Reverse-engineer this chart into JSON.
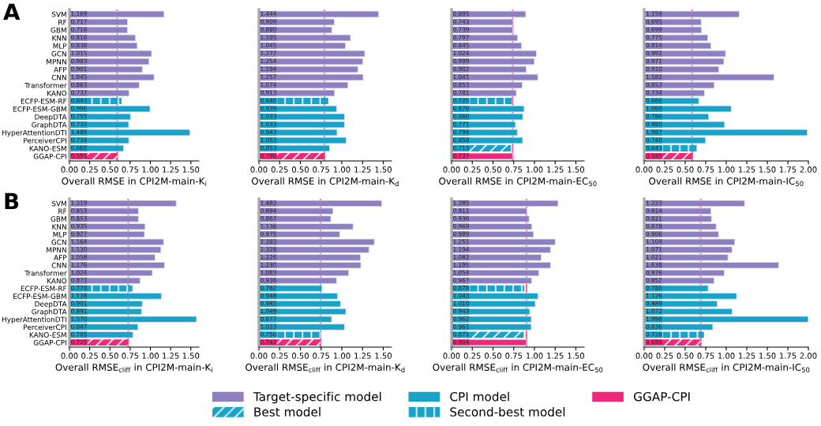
{
  "chart_data": [
    {
      "type": "bar",
      "orientation": "horizontal",
      "annotations": [
        "A"
      ],
      "xlabel": "Overall RMSE in CPI2M-main-K$_{i}$",
      "categories": [
        "SVM",
        "RF",
        "GBM",
        "KNN",
        "MLP",
        "GCN",
        "MPNN",
        "AFP",
        "CNN",
        "Transformer",
        "KANO",
        "ECFP-ESM-RF",
        "ECFP-ESM-GBM",
        "DeepDTA",
        "GraphDTA",
        "HyperAttentionDTI",
        "PerceiverCPI",
        "KANO-ESM",
        "GGAP-CPI"
      ],
      "xlim": [
        0,
        1.6
      ],
      "xticks": [
        {
          "value": 0,
          "label": "0.00"
        },
        {
          "value": 0.25,
          "label": "0.25"
        },
        {
          "value": 0.5,
          "label": "0.50"
        },
        {
          "value": 0.75,
          "label": "0.75"
        },
        {
          "value": 1,
          "label": "1.00"
        },
        {
          "value": 1.25,
          "label": "1.25"
        },
        {
          "value": 1.5,
          "label": "1.50"
        }
      ],
      "ref_lines": [
        {
          "axis": "x",
          "value": 0.591,
          "color": "#f06fa8"
        }
      ],
      "series": [
        {
          "color": "#8e7fc0",
          "values": [
            1.169,
            0.717,
            0.716,
            0.816,
            0.838,
            1.015,
            0.983,
            0.901,
            1.045,
            0.863,
            0.737,
            null,
            null,
            null,
            null,
            null,
            null,
            null,
            null
          ],
          "value_labels": [
            "1.169",
            "0.717",
            "0.716",
            "0.816",
            "0.838",
            "1.015",
            "0.983",
            "0.901",
            "1.045",
            "0.863",
            "0.737",
            null,
            null,
            null,
            null,
            null,
            null,
            null,
            null
          ]
        },
        {
          "color": "#1aa3c8",
          "values": [
            null,
            null,
            null,
            null,
            null,
            null,
            null,
            null,
            null,
            null,
            null,
            null,
            0.996,
            0.755,
            0.732,
            1.489,
            0.734,
            0.668,
            null
          ],
          "value_labels": [
            null,
            null,
            null,
            null,
            null,
            null,
            null,
            null,
            null,
            null,
            null,
            null,
            "0.996",
            "0.755",
            "0.732",
            "1.489",
            "0.734",
            "0.668",
            null
          ]
        },
        {
          "color": "#f0287c",
          "line_style": "dashed",
          "values": [
            null,
            null,
            null,
            null,
            null,
            null,
            null,
            null,
            null,
            null,
            null,
            null,
            null,
            null,
            null,
            null,
            null,
            null,
            0.591
          ],
          "value_labels": [
            null,
            null,
            null,
            null,
            null,
            null,
            null,
            null,
            null,
            null,
            null,
            null,
            null,
            null,
            null,
            null,
            null,
            null,
            "0.591"
          ]
        },
        {
          "color": "#1aa3c8",
          "line_style": "dotted",
          "values": [
            null,
            null,
            null,
            null,
            null,
            null,
            null,
            null,
            null,
            null,
            null,
            0.643,
            null,
            null,
            null,
            null,
            null,
            null,
            null
          ],
          "value_labels": [
            null,
            null,
            null,
            null,
            null,
            null,
            null,
            null,
            null,
            null,
            null,
            "0.643",
            null,
            null,
            null,
            null,
            null,
            null,
            null
          ]
        }
      ]
    },
    {
      "type": "bar",
      "orientation": "horizontal",
      "tick_labels": "x",
      "xlabel": "Overall RMSE in CPI2M-main-K$_{d}$",
      "categories": [
        null,
        null,
        null,
        null,
        null,
        null,
        null,
        null,
        null,
        null,
        null,
        null,
        null,
        null,
        null,
        null,
        null,
        null,
        null
      ],
      "xlim": [
        0,
        1.6
      ],
      "xticks": [
        {
          "value": 0,
          "label": "0.00"
        },
        {
          "value": 0.25,
          "label": "0.25"
        },
        {
          "value": 0.5,
          "label": "0.50"
        },
        {
          "value": 0.75,
          "label": "0.75"
        },
        {
          "value": 1,
          "label": "1.00"
        },
        {
          "value": 1.25,
          "label": "1.25"
        },
        {
          "value": 1.5,
          "label": "1.50"
        }
      ],
      "ref_lines": [
        {
          "axis": "x",
          "value": 0.79,
          "color": "#f06fa8"
        }
      ],
      "series": [
        {
          "color": "#8e7fc0",
          "values": [
            1.444,
            0.909,
            0.88,
            1.105,
            1.045,
            1.277,
            1.254,
            1.194,
            1.257,
            1.074,
            0.913,
            null,
            null,
            null,
            null,
            null,
            null,
            null,
            null
          ],
          "value_labels": [
            "1.444",
            "0.909",
            "0.880",
            "1.105",
            "1.045",
            "1.277",
            "1.254",
            "1.194",
            "1.257",
            "1.074",
            "0.913",
            null,
            null,
            null,
            null,
            null,
            null,
            null,
            null
          ]
        },
        {
          "color": "#1aa3c8",
          "values": [
            null,
            null,
            null,
            null,
            null,
            null,
            null,
            null,
            null,
            null,
            null,
            null,
            0.939,
            1.033,
            1.033,
            0.943,
            1.053,
            0.853,
            null
          ],
          "value_labels": [
            null,
            null,
            null,
            null,
            null,
            null,
            null,
            null,
            null,
            null,
            null,
            null,
            "0.939",
            "1.033",
            "1.033",
            "0.943",
            "1.053",
            "0.853",
            null
          ]
        },
        {
          "color": "#f0287c",
          "line_style": "dashed",
          "values": [
            null,
            null,
            null,
            null,
            null,
            null,
            null,
            null,
            null,
            null,
            null,
            null,
            null,
            null,
            null,
            null,
            null,
            null,
            0.79
          ],
          "value_labels": [
            null,
            null,
            null,
            null,
            null,
            null,
            null,
            null,
            null,
            null,
            null,
            null,
            null,
            null,
            null,
            null,
            null,
            null,
            "0.790"
          ]
        },
        {
          "color": "#1aa3c8",
          "line_style": "dotted",
          "values": [
            null,
            null,
            null,
            null,
            null,
            null,
            null,
            null,
            null,
            null,
            null,
            0.84,
            null,
            null,
            null,
            null,
            null,
            null,
            null
          ],
          "value_labels": [
            null,
            null,
            null,
            null,
            null,
            null,
            null,
            null,
            null,
            null,
            null,
            "0.840",
            null,
            null,
            null,
            null,
            null,
            null,
            null
          ]
        }
      ]
    },
    {
      "type": "bar",
      "orientation": "horizontal",
      "tick_labels": "x",
      "legend": "bottom",
      "xlabel": "Overall RMSE in CPI2M-main-EC$_{50}$",
      "categories": [
        null,
        null,
        null,
        null,
        null,
        null,
        null,
        null,
        null,
        null,
        null,
        null,
        null,
        null,
        null,
        null,
        null,
        null,
        null
      ],
      "xlim": [
        0,
        1.6
      ],
      "xticks": [
        {
          "value": 0,
          "label": "0.00"
        },
        {
          "value": 0.25,
          "label": "0.25"
        },
        {
          "value": 0.5,
          "label": "0.50"
        },
        {
          "value": 0.75,
          "label": "0.75"
        },
        {
          "value": 1,
          "label": "1.00"
        },
        {
          "value": 1.25,
          "label": "1.25"
        },
        {
          "value": 1.5,
          "label": "1.50"
        }
      ],
      "ref_lines": [
        {
          "axis": "x",
          "value": 0.737,
          "color": "#f06fa8"
        }
      ],
      "series": [
        {
          "name": "Target-specific model",
          "color": "#8e7fc0",
          "values": [
            0.895,
            0.743,
            0.739,
            0.797,
            0.845,
            1.024,
            0.999,
            0.902,
            1.041,
            0.853,
            0.781,
            null,
            null,
            null,
            null,
            null,
            null,
            null,
            null
          ],
          "value_labels": [
            "0.895",
            "0.743",
            "0.739",
            "0.797",
            "0.845",
            "1.024",
            "0.999",
            "0.902",
            "1.041",
            "0.853",
            "0.781",
            null,
            null,
            null,
            null,
            null,
            null,
            null,
            null
          ]
        },
        {
          "name": "CPI model",
          "color": "#1aa3c8",
          "values": [
            null,
            null,
            null,
            null,
            null,
            null,
            null,
            null,
            null,
            null,
            null,
            null,
            0.876,
            0.86,
            0.771,
            0.794,
            0.858,
            null,
            null
          ],
          "value_labels": [
            null,
            null,
            null,
            null,
            null,
            null,
            null,
            null,
            null,
            null,
            null,
            null,
            "0.876",
            "0.860",
            "0.771",
            "0.794",
            "0.858",
            null,
            null
          ]
        },
        {
          "name": "GGAP-CPI",
          "color": "#f0287c",
          "values": [
            null,
            null,
            null,
            null,
            null,
            null,
            null,
            null,
            null,
            null,
            null,
            null,
            null,
            null,
            null,
            null,
            null,
            null,
            0.737
          ],
          "value_labels": [
            null,
            null,
            null,
            null,
            null,
            null,
            null,
            null,
            null,
            null,
            null,
            null,
            null,
            null,
            null,
            null,
            null,
            null,
            "0.737"
          ]
        },
        {
          "name": "Best model",
          "color": "#1aa3c8",
          "line_style": "dashed",
          "values": [
            null,
            null,
            null,
            null,
            null,
            null,
            null,
            null,
            null,
            null,
            null,
            null,
            null,
            null,
            null,
            null,
            null,
            0.715,
            null
          ],
          "value_labels": [
            null,
            null,
            null,
            null,
            null,
            null,
            null,
            null,
            null,
            null,
            null,
            null,
            null,
            null,
            null,
            null,
            null,
            "0.715",
            null
          ]
        },
        {
          "name": "Second-best model",
          "color": "#1aa3c8",
          "line_style": "dotted",
          "values": [
            null,
            null,
            null,
            null,
            null,
            null,
            null,
            null,
            null,
            null,
            null,
            0.725,
            null,
            null,
            null,
            null,
            null,
            null,
            null
          ],
          "value_labels": [
            null,
            null,
            null,
            null,
            null,
            null,
            null,
            null,
            null,
            null,
            null,
            "0.725",
            null,
            null,
            null,
            null,
            null,
            null,
            null
          ]
        }
      ]
    },
    {
      "type": "bar",
      "orientation": "horizontal",
      "tick_labels": "x",
      "xlabel": "Overall RMSE in CPI2M-main-IC$_{50}$",
      "categories": [
        null,
        null,
        null,
        null,
        null,
        null,
        null,
        null,
        null,
        null,
        null,
        null,
        null,
        null,
        null,
        null,
        null,
        null,
        null
      ],
      "xlim": [
        0,
        2.0
      ],
      "xticks": [
        {
          "value": 0,
          "label": "0.00"
        },
        {
          "value": 0.25,
          "label": "0.25"
        },
        {
          "value": 0.5,
          "label": "0.50"
        },
        {
          "value": 0.75,
          "label": "0.75"
        },
        {
          "value": 1,
          "label": "1.00"
        },
        {
          "value": 1.25,
          "label": "1.25"
        },
        {
          "value": 1.5,
          "label": "1.50"
        },
        {
          "value": 1.75,
          "label": "1.75"
        },
        {
          "value": 2,
          "label": "2.00"
        }
      ],
      "ref_lines": [
        {
          "axis": "x",
          "value": 0.585,
          "color": "#f06fa8"
        }
      ],
      "series": [
        {
          "color": "#8e7fc0",
          "values": [
            1.159,
            0.695,
            0.699,
            0.775,
            0.814,
            0.992,
            0.971,
            0.91,
            1.582,
            0.853,
            0.734,
            null,
            null,
            null,
            null,
            null,
            null,
            null,
            null
          ],
          "value_labels": [
            "1.159",
            "0.695",
            "0.699",
            "0.775",
            "0.814",
            "0.992",
            "0.971",
            "0.910",
            "1.582",
            "0.853",
            "0.734",
            null,
            null,
            null,
            null,
            null,
            null,
            null,
            null
          ]
        },
        {
          "color": "#1aa3c8",
          "values": [
            null,
            null,
            null,
            null,
            null,
            null,
            null,
            null,
            null,
            null,
            null,
            0.666,
            1.06,
            0.786,
            0.98,
            1.987,
            0.748,
            null,
            null
          ],
          "value_labels": [
            null,
            null,
            null,
            null,
            null,
            null,
            null,
            null,
            null,
            null,
            null,
            "0.666",
            "1.060",
            "0.786",
            "0.980",
            "1.987",
            "0.748",
            null,
            null
          ]
        },
        {
          "color": "#f0287c",
          "line_style": "dashed",
          "values": [
            null,
            null,
            null,
            null,
            null,
            null,
            null,
            null,
            null,
            null,
            null,
            null,
            null,
            null,
            null,
            null,
            null,
            null,
            0.585
          ],
          "value_labels": [
            null,
            null,
            null,
            null,
            null,
            null,
            null,
            null,
            null,
            null,
            null,
            null,
            null,
            null,
            null,
            null,
            null,
            null,
            "0.585"
          ]
        },
        {
          "color": "#1aa3c8",
          "line_style": "dotted",
          "values": [
            null,
            null,
            null,
            null,
            null,
            null,
            null,
            null,
            null,
            null,
            null,
            null,
            null,
            null,
            null,
            null,
            null,
            0.643,
            null
          ],
          "value_labels": [
            null,
            null,
            null,
            null,
            null,
            null,
            null,
            null,
            null,
            null,
            null,
            null,
            null,
            null,
            null,
            null,
            null,
            "0.643",
            null
          ]
        }
      ]
    },
    {
      "type": "bar",
      "orientation": "horizontal",
      "annotations": [
        "B"
      ],
      "xlabel": "Overall RMSE$_{cliff}$ in CPI2M-main-K$_{i}$",
      "categories": [
        "SVM",
        "RF",
        "GBM",
        "KNN",
        "MLP",
        "GCN",
        "MPNN",
        "AFP",
        "CNN",
        "Transformer",
        "KANO",
        "ECFP-ESM-RF",
        "ECFP-ESM-GBM",
        "DeepDTA",
        "GraphDTA",
        "HyperAttentionDTI",
        "PerceiverCPI",
        "KANO-ESM",
        "GGAP-CPI"
      ],
      "xlim": [
        0,
        1.6
      ],
      "xticks": [
        {
          "value": 0,
          "label": "0.00"
        },
        {
          "value": 0.25,
          "label": "0.25"
        },
        {
          "value": 0.5,
          "label": "0.50"
        },
        {
          "value": 0.75,
          "label": "0.75"
        },
        {
          "value": 1,
          "label": "1.00"
        },
        {
          "value": 1.25,
          "label": "1.25"
        },
        {
          "value": 1.5,
          "label": "1.50"
        }
      ],
      "ref_lines": [
        {
          "axis": "x",
          "value": 0.725,
          "color": "#f06fa8"
        }
      ],
      "series": [
        {
          "color": "#8e7fc0",
          "values": [
            1.319,
            0.853,
            0.853,
            0.935,
            0.927,
            1.164,
            1.13,
            1.058,
            1.176,
            1.024,
            0.873,
            null,
            null,
            null,
            null,
            null,
            null,
            null,
            null
          ],
          "value_labels": [
            "1.319",
            "0.853",
            "0.853",
            "0.935",
            "0.927",
            "1.164",
            "1.130",
            "1.058",
            "1.176",
            "1.024",
            "0.873",
            null,
            null,
            null,
            null,
            null,
            null,
            null,
            null
          ]
        },
        {
          "color": "#1aa3c8",
          "values": [
            null,
            null,
            null,
            null,
            null,
            null,
            null,
            null,
            null,
            null,
            null,
            null,
            1.138,
            0.901,
            0.891,
            1.57,
            0.847,
            0.785,
            null
          ],
          "value_labels": [
            null,
            null,
            null,
            null,
            null,
            null,
            null,
            null,
            null,
            null,
            null,
            null,
            "1.138",
            "0.901",
            "0.891",
            "1.570",
            "0.847",
            "0.785",
            null
          ]
        },
        {
          "color": "#f0287c",
          "line_style": "dashed",
          "values": [
            null,
            null,
            null,
            null,
            null,
            null,
            null,
            null,
            null,
            null,
            null,
            null,
            null,
            null,
            null,
            null,
            null,
            null,
            0.725
          ],
          "value_labels": [
            null,
            null,
            null,
            null,
            null,
            null,
            null,
            null,
            null,
            null,
            null,
            null,
            null,
            null,
            null,
            null,
            null,
            null,
            "0.725"
          ]
        },
        {
          "color": "#1aa3c8",
          "line_style": "dotted",
          "values": [
            null,
            null,
            null,
            null,
            null,
            null,
            null,
            null,
            null,
            null,
            null,
            0.778,
            null,
            null,
            null,
            null,
            null,
            null,
            null
          ],
          "value_labels": [
            null,
            null,
            null,
            null,
            null,
            null,
            null,
            null,
            null,
            null,
            null,
            "0.778",
            null,
            null,
            null,
            null,
            null,
            null,
            null
          ]
        }
      ]
    },
    {
      "type": "bar",
      "orientation": "horizontal",
      "tick_labels": "x",
      "xlabel": "Overall RMSE$_{cliff}$ in CPI2M-main-K$_{d}$",
      "categories": [
        null,
        null,
        null,
        null,
        null,
        null,
        null,
        null,
        null,
        null,
        null,
        null,
        null,
        null,
        null,
        null,
        null,
        null,
        null
      ],
      "xlim": [
        0,
        1.6
      ],
      "xticks": [
        {
          "value": 0,
          "label": "0.00"
        },
        {
          "value": 0.25,
          "label": "0.25"
        },
        {
          "value": 0.5,
          "label": "0.50"
        },
        {
          "value": 0.75,
          "label": "0.75"
        },
        {
          "value": 1,
          "label": "1.00"
        },
        {
          "value": 1.25,
          "label": "1.25"
        },
        {
          "value": 1.5,
          "label": "1.50"
        }
      ],
      "ref_lines": [
        {
          "axis": "x",
          "value": 0.743,
          "color": "#f06fa8"
        }
      ],
      "series": [
        {
          "color": "#8e7fc0",
          "values": [
            1.483,
            0.894,
            0.867,
            1.136,
            0.975,
            1.393,
            1.328,
            1.226,
            1.23,
            1.083,
            0.936,
            null,
            null,
            null,
            null,
            null,
            null,
            null,
            null
          ],
          "value_labels": [
            "1.483",
            "0.894",
            "0.867",
            "1.136",
            "0.975",
            "1.393",
            "1.328",
            "1.226",
            "1.230",
            "1.083",
            "0.936",
            null,
            null,
            null,
            null,
            null,
            null,
            null,
            null
          ]
        },
        {
          "color": "#1aa3c8",
          "values": [
            null,
            null,
            null,
            null,
            null,
            null,
            null,
            null,
            null,
            null,
            null,
            0.762,
            0.948,
            0.985,
            1.049,
            0.877,
            1.033,
            null,
            null
          ],
          "value_labels": [
            null,
            null,
            null,
            null,
            null,
            null,
            null,
            null,
            null,
            null,
            null,
            "0.762",
            "0.948",
            "0.985",
            "1.049",
            "0.877",
            "1.033",
            null,
            null
          ]
        },
        {
          "color": "#f0287c",
          "line_style": "dashed",
          "values": [
            null,
            null,
            null,
            null,
            null,
            null,
            null,
            null,
            null,
            null,
            null,
            null,
            null,
            null,
            null,
            null,
            null,
            null,
            0.743
          ],
          "value_labels": [
            null,
            null,
            null,
            null,
            null,
            null,
            null,
            null,
            null,
            null,
            null,
            null,
            null,
            null,
            null,
            null,
            null,
            null,
            "0.743"
          ]
        },
        {
          "color": "#1aa3c8",
          "line_style": "dotted",
          "values": [
            null,
            null,
            null,
            null,
            null,
            null,
            null,
            null,
            null,
            null,
            null,
            null,
            null,
            null,
            null,
            null,
            null,
            0.75,
            null
          ],
          "value_labels": [
            null,
            null,
            null,
            null,
            null,
            null,
            null,
            null,
            null,
            null,
            null,
            null,
            null,
            null,
            null,
            null,
            null,
            "0.750",
            null
          ]
        }
      ]
    },
    {
      "type": "bar",
      "orientation": "horizontal",
      "tick_labels": "x",
      "xlabel": "Overall RMSE$_{cliff}$ in CPI2M-main-EC$_{50}$",
      "categories": [
        null,
        null,
        null,
        null,
        null,
        null,
        null,
        null,
        null,
        null,
        null,
        null,
        null,
        null,
        null,
        null,
        null,
        null,
        null
      ],
      "xlim": [
        0,
        1.6
      ],
      "xticks": [
        {
          "value": 0,
          "label": "0.00"
        },
        {
          "value": 0.25,
          "label": "0.25"
        },
        {
          "value": 0.5,
          "label": "0.50"
        },
        {
          "value": 0.75,
          "label": "0.75"
        },
        {
          "value": 1,
          "label": "1.00"
        },
        {
          "value": 1.25,
          "label": "1.25"
        },
        {
          "value": 1.5,
          "label": "1.50"
        }
      ],
      "ref_lines": [
        {
          "axis": "x",
          "value": 0.904,
          "color": "#f06fa8"
        }
      ],
      "series": [
        {
          "color": "#8e7fc0",
          "values": [
            1.285,
            0.911,
            0.936,
            0.969,
            0.989,
            1.251,
            1.194,
            1.082,
            1.195,
            1.054,
            0.967,
            null,
            null,
            null,
            null,
            null,
            null,
            null,
            null
          ],
          "value_labels": [
            "1.285",
            "0.911",
            "0.936",
            "0.969",
            "0.989",
            "1.251",
            "1.194",
            "1.082",
            "1.195",
            "1.054",
            "0.967",
            null,
            null,
            null,
            null,
            null,
            null,
            null,
            null
          ]
        },
        {
          "color": "#1aa3c8",
          "values": [
            null,
            null,
            null,
            null,
            null,
            null,
            null,
            null,
            null,
            null,
            null,
            null,
            1.043,
            1.01,
            0.943,
            0.962,
            0.961,
            null,
            null
          ],
          "value_labels": [
            null,
            null,
            null,
            null,
            null,
            null,
            null,
            null,
            null,
            null,
            null,
            null,
            "1.043",
            "1.010",
            "0.943",
            "0.962",
            "0.961",
            null,
            null
          ]
        },
        {
          "color": "#f0287c",
          "values": [
            null,
            null,
            null,
            null,
            null,
            null,
            null,
            null,
            null,
            null,
            null,
            null,
            null,
            null,
            null,
            null,
            null,
            null,
            0.904
          ],
          "value_labels": [
            null,
            null,
            null,
            null,
            null,
            null,
            null,
            null,
            null,
            null,
            null,
            null,
            null,
            null,
            null,
            null,
            null,
            null,
            "0.904"
          ]
        },
        {
          "color": "#1aa3c8",
          "line_style": "dashed",
          "values": [
            null,
            null,
            null,
            null,
            null,
            null,
            null,
            null,
            null,
            null,
            null,
            null,
            null,
            null,
            null,
            null,
            null,
            0.871,
            null
          ],
          "value_labels": [
            null,
            null,
            null,
            null,
            null,
            null,
            null,
            null,
            null,
            null,
            null,
            null,
            null,
            null,
            null,
            null,
            null,
            "0.871",
            null
          ]
        },
        {
          "color": "#1aa3c8",
          "line_style": "dotted",
          "values": [
            null,
            null,
            null,
            null,
            null,
            null,
            null,
            null,
            null,
            null,
            null,
            0.878,
            null,
            null,
            null,
            null,
            null,
            null,
            null
          ],
          "value_labels": [
            null,
            null,
            null,
            null,
            null,
            null,
            null,
            null,
            null,
            null,
            null,
            "0.878",
            null,
            null,
            null,
            null,
            null,
            null,
            null
          ]
        }
      ]
    },
    {
      "type": "bar",
      "orientation": "horizontal",
      "tick_labels": "x",
      "xlabel": "Overall RMSE$_{cliff}$ in CPI2M-main-IC$_{50}$",
      "categories": [
        null,
        null,
        null,
        null,
        null,
        null,
        null,
        null,
        null,
        null,
        null,
        null,
        null,
        null,
        null,
        null,
        null,
        null,
        null
      ],
      "xlim": [
        0,
        2.0
      ],
      "xticks": [
        {
          "value": 0,
          "label": "0.00"
        },
        {
          "value": 0.25,
          "label": "0.25"
        },
        {
          "value": 0.5,
          "label": "0.50"
        },
        {
          "value": 0.75,
          "label": "0.75"
        },
        {
          "value": 1,
          "label": "1.00"
        },
        {
          "value": 1.25,
          "label": "1.25"
        },
        {
          "value": 1.5,
          "label": "1.50"
        },
        {
          "value": 1.75,
          "label": "1.75"
        },
        {
          "value": 2,
          "label": "2.00"
        }
      ],
      "ref_lines": [
        {
          "axis": "x",
          "value": 0.689,
          "color": "#f06fa8"
        }
      ],
      "series": [
        {
          "color": "#8e7fc0",
          "values": [
            1.223,
            0.814,
            0.821,
            0.878,
            0.906,
            1.104,
            1.071,
            1.021,
            1.638,
            0.976,
            0.852,
            null,
            null,
            null,
            null,
            null,
            null,
            null,
            null
          ],
          "value_labels": [
            "1.223",
            "0.814",
            "0.821",
            "0.878",
            "0.906",
            "1.104",
            "1.071",
            "1.021",
            "1.638",
            "0.976",
            "0.852",
            null,
            null,
            null,
            null,
            null,
            null,
            null,
            null
          ]
        },
        {
          "color": "#1aa3c8",
          "values": [
            null,
            null,
            null,
            null,
            null,
            null,
            null,
            null,
            null,
            null,
            null,
            0.78,
            1.126,
            0.889,
            1.072,
            1.998,
            0.836,
            null,
            null
          ],
          "value_labels": [
            null,
            null,
            null,
            null,
            null,
            null,
            null,
            null,
            null,
            null,
            null,
            "0.780",
            "1.126",
            "0.889",
            "1.072",
            "1.998",
            "0.836",
            null,
            null
          ]
        },
        {
          "color": "#f0287c",
          "line_style": "dashed",
          "values": [
            null,
            null,
            null,
            null,
            null,
            null,
            null,
            null,
            null,
            null,
            null,
            null,
            null,
            null,
            null,
            null,
            null,
            null,
            0.689
          ],
          "value_labels": [
            null,
            null,
            null,
            null,
            null,
            null,
            null,
            null,
            null,
            null,
            null,
            null,
            null,
            null,
            null,
            null,
            null,
            null,
            "0.689"
          ]
        },
        {
          "color": "#1aa3c8",
          "line_style": "dotted",
          "values": [
            null,
            null,
            null,
            null,
            null,
            null,
            null,
            null,
            null,
            null,
            null,
            null,
            null,
            null,
            null,
            null,
            null,
            0.728,
            null
          ],
          "value_labels": [
            null,
            null,
            null,
            null,
            null,
            null,
            null,
            null,
            null,
            null,
            null,
            null,
            null,
            null,
            null,
            null,
            null,
            "0.728",
            null
          ]
        }
      ]
    }
  ]
}
